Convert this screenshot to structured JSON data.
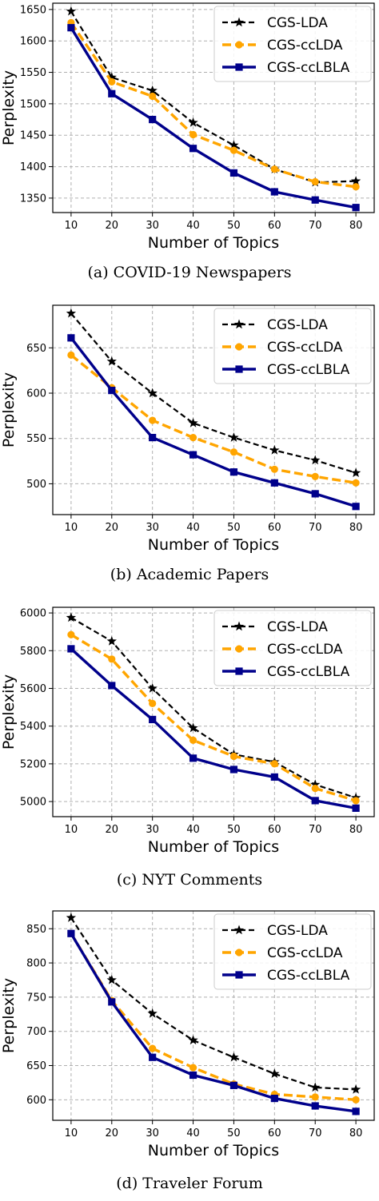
{
  "chart_data": [
    {
      "type": "line",
      "caption": "(a)  COVID-19 Newspapers",
      "xlabel": "Number of Topics",
      "ylabel": "Perplexity",
      "x": [
        10,
        20,
        30,
        40,
        50,
        60,
        70,
        80
      ],
      "ylim": [
        1327,
        1660
      ],
      "yticks": [
        1350,
        1400,
        1450,
        1500,
        1550,
        1600,
        1650
      ],
      "grid": true,
      "legend": "top-right",
      "series": [
        {
          "name": "CGS-LDA",
          "color": "#000000",
          "dash": true,
          "marker": "star",
          "values": [
            1647,
            1542,
            1521,
            1470,
            1434,
            1396,
            1375,
            1377
          ]
        },
        {
          "name": "CGS-ccLDA",
          "color": "#ffa500",
          "dash": true,
          "marker": "circle",
          "values": [
            1629,
            1535,
            1512,
            1451,
            1426,
            1396,
            1376,
            1368
          ]
        },
        {
          "name": "CGS-ccLBLA",
          "color": "#00008b",
          "dash": false,
          "marker": "square",
          "values": [
            1621,
            1516,
            1475,
            1429,
            1390,
            1360,
            1347,
            1335
          ]
        }
      ]
    },
    {
      "type": "line",
      "caption": "(b)  Academic Papers",
      "xlabel": "Number of Topics",
      "ylabel": "Perplexity",
      "x": [
        10,
        20,
        30,
        40,
        50,
        60,
        70,
        80
      ],
      "ylim": [
        466,
        697
      ],
      "yticks": [
        500,
        550,
        600,
        650
      ],
      "grid": true,
      "legend": "top-right",
      "series": [
        {
          "name": "CGS-LDA",
          "color": "#000000",
          "dash": true,
          "marker": "star",
          "values": [
            688,
            635,
            600,
            567,
            551,
            537,
            526,
            512
          ]
        },
        {
          "name": "CGS-ccLDA",
          "color": "#ffa500",
          "dash": true,
          "marker": "circle",
          "values": [
            642,
            606,
            570,
            551,
            535,
            516,
            508,
            501
          ]
        },
        {
          "name": "CGS-ccLBLA",
          "color": "#00008b",
          "dash": false,
          "marker": "square",
          "values": [
            661,
            603,
            551,
            532,
            513,
            501,
            489,
            475
          ]
        }
      ]
    },
    {
      "type": "line",
      "caption": "(c)  NYT Comments",
      "xlabel": "Number of Topics",
      "ylabel": "Perplexity",
      "x": [
        10,
        20,
        30,
        40,
        50,
        60,
        70,
        80
      ],
      "ylim": [
        4920,
        6030
      ],
      "yticks": [
        5000,
        5200,
        5400,
        5600,
        5800,
        6000
      ],
      "grid": true,
      "legend": "top-right",
      "series": [
        {
          "name": "CGS-LDA",
          "color": "#000000",
          "dash": true,
          "marker": "star",
          "values": [
            5975,
            5850,
            5600,
            5390,
            5250,
            5210,
            5090,
            5020
          ]
        },
        {
          "name": "CGS-ccLDA",
          "color": "#ffa500",
          "dash": true,
          "marker": "circle",
          "values": [
            5885,
            5755,
            5520,
            5325,
            5240,
            5200,
            5070,
            5005
          ]
        },
        {
          "name": "CGS-ccLBLA",
          "color": "#00008b",
          "dash": false,
          "marker": "square",
          "values": [
            5810,
            5615,
            5435,
            5230,
            5170,
            5130,
            5005,
            4965
          ]
        }
      ]
    },
    {
      "type": "line",
      "caption": "(d)  Traveler Forum",
      "xlabel": "Number of Topics",
      "ylabel": "Perplexity",
      "x": [
        10,
        20,
        30,
        40,
        50,
        60,
        70,
        80
      ],
      "ylim": [
        570,
        876
      ],
      "yticks": [
        600,
        650,
        700,
        750,
        800,
        850
      ],
      "grid": true,
      "legend": "top-right",
      "series": [
        {
          "name": "CGS-LDA",
          "color": "#000000",
          "dash": true,
          "marker": "star",
          "values": [
            866,
            775,
            726,
            687,
            662,
            638,
            618,
            615
          ]
        },
        {
          "name": "CGS-ccLDA",
          "color": "#ffa500",
          "dash": true,
          "marker": "circle",
          "values": [
            843,
            745,
            675,
            647,
            623,
            608,
            604,
            600
          ]
        },
        {
          "name": "CGS-ccLBLA",
          "color": "#00008b",
          "dash": false,
          "marker": "square",
          "values": [
            843,
            743,
            662,
            636,
            621,
            602,
            591,
            583
          ]
        }
      ]
    }
  ]
}
